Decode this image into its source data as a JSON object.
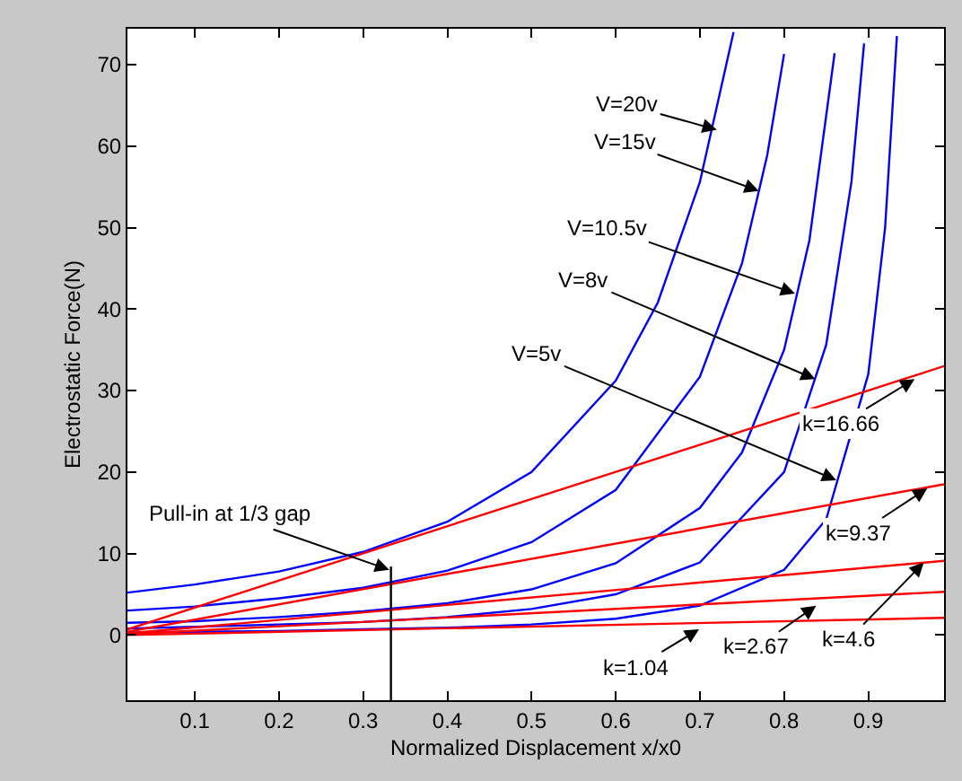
{
  "chart_data": {
    "type": "line",
    "xlabel": "Normalized Displacement x/x0",
    "ylabel": "Electrostatic Force(N)",
    "xlim": [
      0.02,
      0.99
    ],
    "xticks": [
      0.1,
      0.2,
      0.3,
      0.4,
      0.5,
      0.6,
      0.7,
      0.8,
      0.9
    ],
    "ylim": [
      -8,
      74.4
    ],
    "yticks": [
      0,
      10,
      20,
      30,
      40,
      50,
      60,
      70
    ],
    "marker": "none",
    "line_style": "solid",
    "series": [
      {
        "color": "#0000ff",
        "x": [
          0.02,
          0.1,
          0.2,
          0.3,
          0.4,
          0.5,
          0.6,
          0.65,
          0.7,
          0.74
        ],
        "values": [
          5.2,
          6.2,
          7.8,
          10.2,
          13.9,
          20.0,
          31.2,
          40.8,
          55.6,
          74.0
        ]
      },
      {
        "color": "#0000ff",
        "x": [
          0.02,
          0.1,
          0.2,
          0.3,
          0.4,
          0.5,
          0.6,
          0.7,
          0.75,
          0.78,
          0.8
        ],
        "values": [
          3.0,
          3.5,
          4.5,
          5.8,
          7.9,
          11.4,
          17.8,
          31.7,
          45.6,
          58.9,
          71.3
        ]
      },
      {
        "color": "#0000ff",
        "x": [
          0.02,
          0.1,
          0.2,
          0.3,
          0.4,
          0.5,
          0.6,
          0.7,
          0.75,
          0.8,
          0.83,
          0.86
        ],
        "values": [
          1.5,
          1.7,
          2.2,
          2.9,
          3.9,
          5.6,
          8.8,
          15.6,
          22.4,
          35.0,
          48.4,
          71.4
        ]
      },
      {
        "color": "#0000ff",
        "x": [
          0.02,
          0.1,
          0.2,
          0.3,
          0.4,
          0.5,
          0.6,
          0.7,
          0.8,
          0.85,
          0.88,
          0.895
        ],
        "values": [
          0.8,
          1.0,
          1.3,
          1.6,
          2.2,
          3.2,
          5.0,
          8.9,
          20.0,
          35.6,
          55.6,
          72.6
        ]
      },
      {
        "color": "#0000ff",
        "x": [
          0.02,
          0.1,
          0.2,
          0.3,
          0.4,
          0.5,
          0.6,
          0.7,
          0.8,
          0.85,
          0.9,
          0.92,
          0.934
        ],
        "values": [
          0.3,
          0.4,
          0.5,
          0.7,
          0.9,
          1.3,
          2.0,
          3.6,
          8.0,
          14.2,
          32.0,
          50.0,
          73.5
        ]
      },
      {
        "color": "#ff0000",
        "x": [
          0.02,
          0.99
        ],
        "values": [
          0.7,
          33.0
        ]
      },
      {
        "color": "#ff0000",
        "x": [
          0.02,
          0.99
        ],
        "values": [
          0.4,
          18.5
        ]
      },
      {
        "color": "#ff0000",
        "x": [
          0.02,
          0.99
        ],
        "values": [
          0.2,
          9.1
        ]
      },
      {
        "color": "#ff0000",
        "x": [
          0.02,
          0.99
        ],
        "values": [
          0.1,
          5.3
        ]
      },
      {
        "color": "#ff0000",
        "x": [
          0.02,
          0.99
        ],
        "values": [
          0.0,
          2.1
        ]
      },
      {
        "color": "#000000",
        "x": [
          0.333,
          0.333
        ],
        "values": [
          -8,
          8.4
        ]
      }
    ],
    "annotations": [
      {
        "text": "V=20v",
        "x": 0.72,
        "y": 62
      },
      {
        "text": "V=15v",
        "x": 0.77,
        "y": 54.5
      },
      {
        "text": "V=10.5v",
        "x": 0.813,
        "y": 41.9
      },
      {
        "text": "V=8v",
        "x": 0.837,
        "y": 31.4
      },
      {
        "text": "V=5v",
        "x": 0.862,
        "y": 19.0
      },
      {
        "text": "k=16.66",
        "x": 0.955,
        "y": 31.4
      },
      {
        "text": "k=9.37",
        "x": 0.97,
        "y": 18.0
      },
      {
        "text": "k=4.6",
        "x": 0.966,
        "y": 8.9
      },
      {
        "text": "k=2.67",
        "x": 0.838,
        "y": 3.6
      },
      {
        "text": "k=1.04",
        "x": 0.699,
        "y": 0.7
      },
      {
        "text": "Pull-in at 1/3 gap",
        "x": 0.331,
        "y": 8.0
      }
    ]
  }
}
